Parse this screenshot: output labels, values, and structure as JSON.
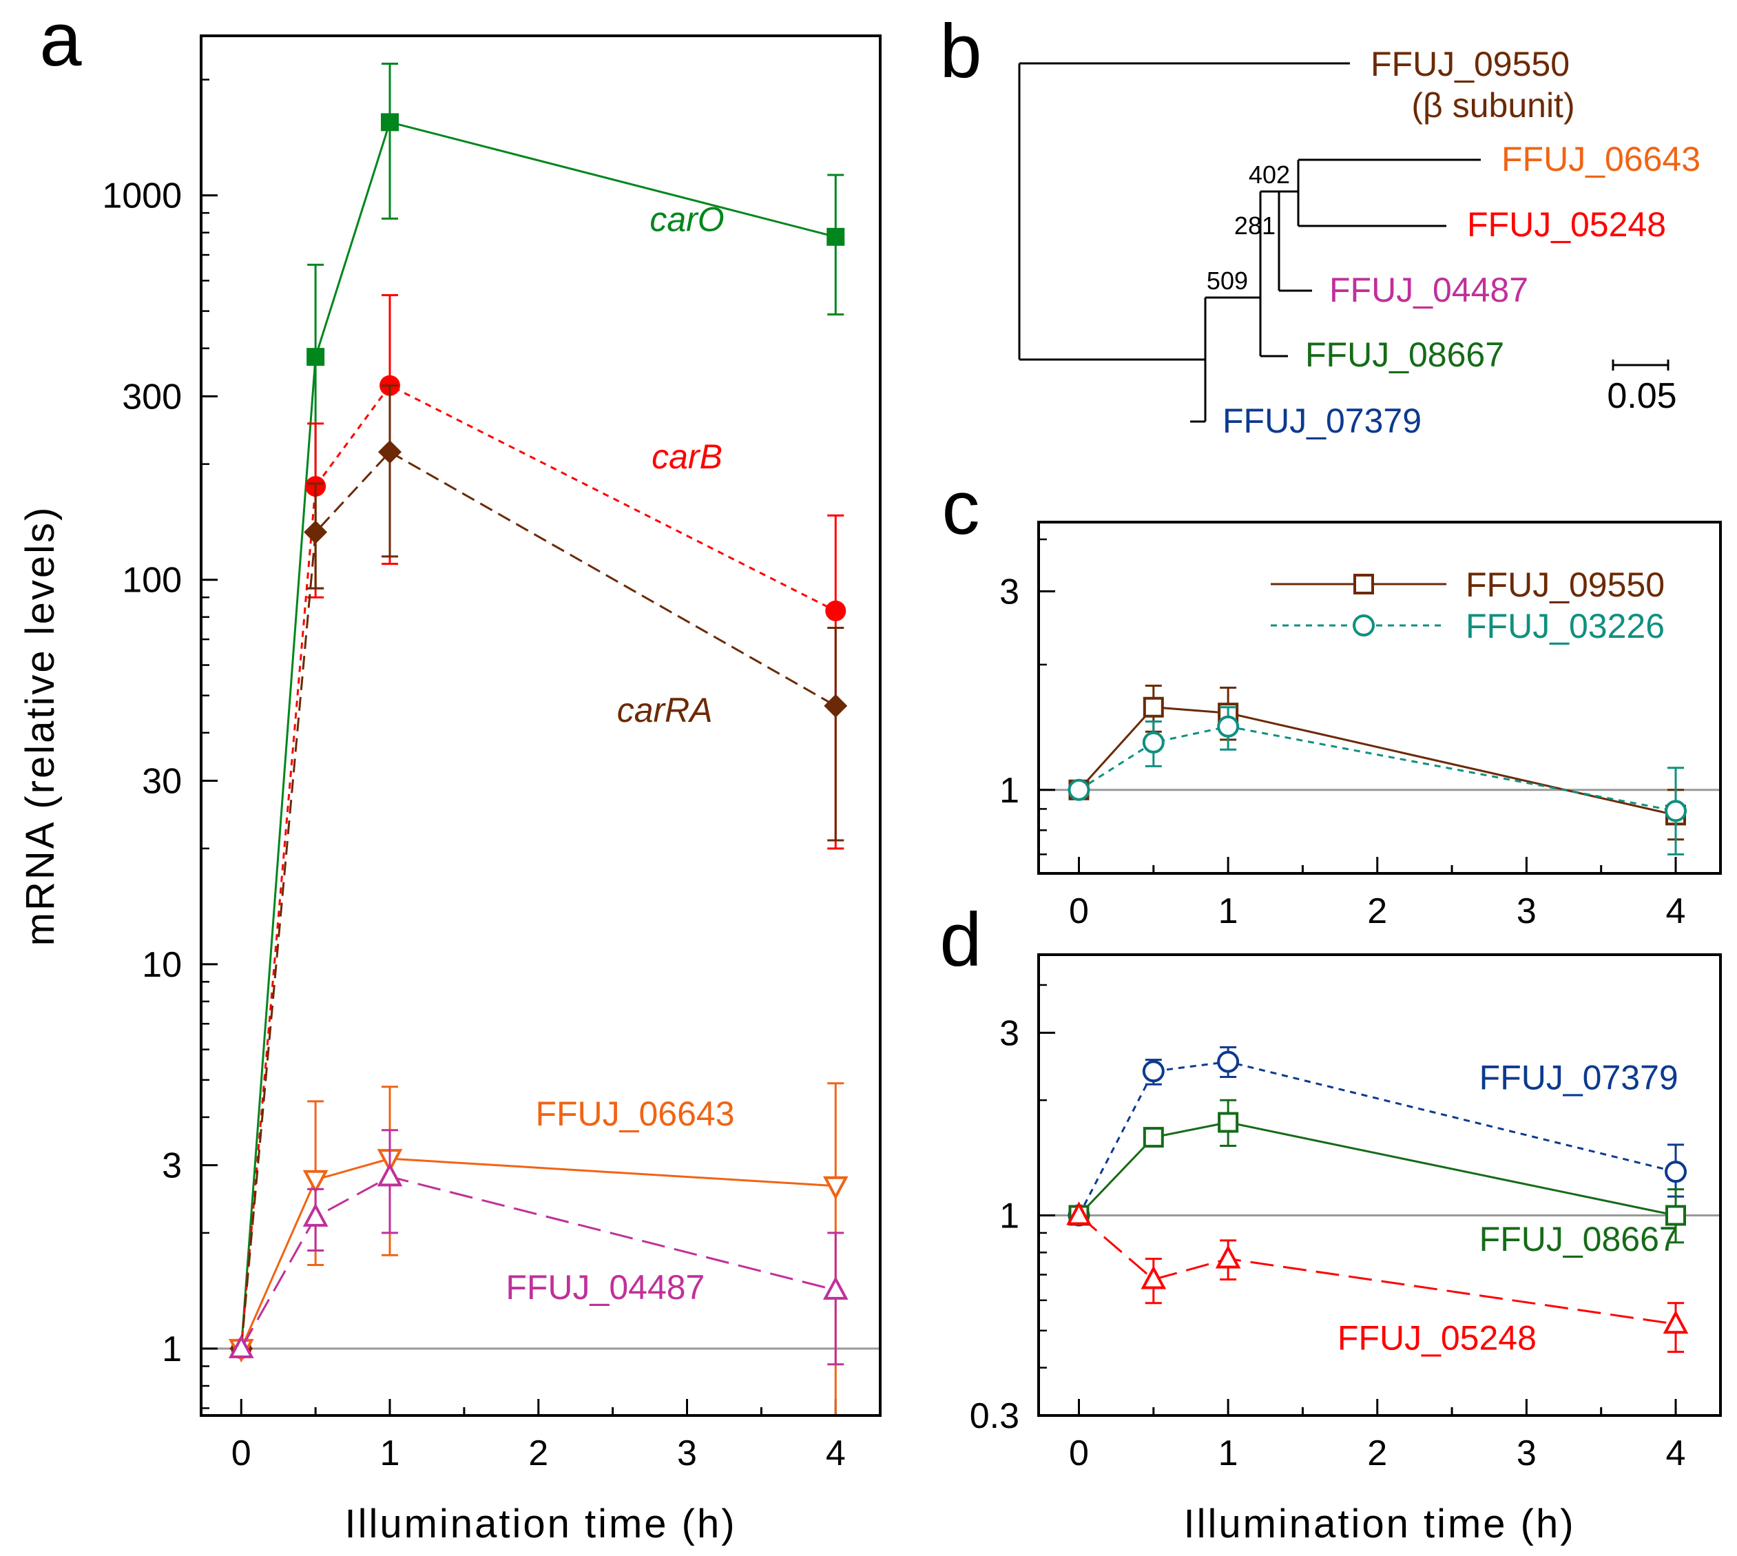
{
  "figure": {
    "xlabel": "Illumination time (h)",
    "baseline_color": "#999999"
  },
  "chart_data": [
    {
      "panel": "a",
      "type": "line",
      "yscale": "log",
      "xlabel": "Illumination time (h)",
      "ylabel": "mRNA (relative levels)",
      "xlim": [
        -0.27,
        4.3
      ],
      "ylim": [
        0.67,
        2600
      ],
      "xticks": [
        0,
        1,
        2,
        3,
        4
      ],
      "xtick_labels": [
        "0",
        "1",
        "2",
        "3",
        "4"
      ],
      "yticks": [
        1,
        3,
        10,
        30,
        100,
        300,
        1000
      ],
      "ytick_labels": [
        "1",
        "3",
        "10",
        "30",
        "100",
        "300",
        "1000"
      ],
      "baseline": 1,
      "series": [
        {
          "name": "carO",
          "italic": true,
          "color": "#00861d",
          "marker": "square-filled",
          "dash": "solid",
          "x": [
            0,
            0.5,
            1,
            4
          ],
          "y": [
            1,
            380,
            1550,
            780
          ],
          "err_low": [
            1,
            95,
            870,
            490
          ],
          "err_high": [
            1,
            660,
            2200,
            1130
          ],
          "label_at": [
            3.0,
            870
          ]
        },
        {
          "name": "carB",
          "italic": true,
          "color": "#ff0000",
          "marker": "circle-filled",
          "dash": "short",
          "x": [
            0,
            0.5,
            1,
            4
          ],
          "y": [
            1,
            175,
            320,
            83
          ],
          "err_low": [
            1,
            90,
            110,
            20
          ],
          "err_high": [
            1,
            255,
            550,
            147
          ],
          "label_at": [
            3.0,
            210
          ]
        },
        {
          "name": "carRA",
          "italic": true,
          "color": "#6b2a05",
          "marker": "diamond-filled",
          "dash": "medium",
          "x": [
            0,
            0.5,
            1,
            4
          ],
          "y": [
            1,
            133,
            215,
            47
          ],
          "err_low": [
            1,
            95,
            115,
            21
          ],
          "err_high": [
            1,
            178,
            320,
            75
          ],
          "label_at": [
            2.85,
            46
          ]
        },
        {
          "name": "FFUJ_06643",
          "italic": false,
          "color": "#f06414",
          "marker": "triangle-down-open",
          "dash": "solid",
          "x": [
            0,
            0.5,
            1,
            4
          ],
          "y": [
            1,
            2.75,
            3.12,
            2.65
          ],
          "err_low": [
            1,
            1.65,
            1.75,
            0.67
          ],
          "err_high": [
            1,
            4.4,
            4.8,
            4.9
          ],
          "label_at": [
            2.65,
            4.1
          ]
        },
        {
          "name": "FFUJ_04487",
          "italic": false,
          "color": "#c0309a",
          "marker": "triangle-up-open",
          "dash": "long",
          "x": [
            0,
            0.5,
            1,
            4
          ],
          "y": [
            1,
            2.2,
            2.8,
            1.42
          ],
          "err_low": [
            1,
            1.8,
            2.0,
            0.91
          ],
          "err_high": [
            1,
            2.6,
            3.7,
            2.0
          ],
          "label_at": [
            2.45,
            1.45
          ]
        }
      ]
    },
    {
      "panel": "b",
      "type": "tree",
      "scale_bar_label": "0.05",
      "bootstrap": [
        "402",
        "281",
        "509"
      ],
      "leaves": [
        {
          "label": "FFUJ_09550",
          "sublabel": "(β subunit)",
          "color": "#6b2a05"
        },
        {
          "label": "FFUJ_06643",
          "color": "#f06414"
        },
        {
          "label": "FFUJ_05248",
          "color": "#ff0000"
        },
        {
          "label": "FFUJ_04487",
          "color": "#c0309a"
        },
        {
          "label": "FFUJ_08667",
          "color": "#156b18"
        },
        {
          "label": "FFUJ_07379",
          "color": "#0c3a8f"
        }
      ]
    },
    {
      "panel": "c",
      "type": "line",
      "yscale": "log",
      "xlim": [
        -0.27,
        4.3
      ],
      "ylim": [
        0.63,
        4.4
      ],
      "xticks": [
        0,
        1,
        2,
        3,
        4
      ],
      "xtick_labels": [
        "0",
        "1",
        "2",
        "3",
        "4"
      ],
      "yticks": [
        1,
        3
      ],
      "ytick_labels": [
        "1",
        "3"
      ],
      "baseline": 1,
      "legend": "top-right",
      "series": [
        {
          "name": "FFUJ_09550",
          "color": "#6b2a05",
          "marker": "square-open",
          "dash": "solid",
          "x": [
            0,
            0.5,
            1,
            4
          ],
          "y": [
            1,
            1.58,
            1.53,
            0.87
          ],
          "err_low": [
            1,
            1.38,
            1.32,
            0.76
          ],
          "err_high": [
            1,
            1.78,
            1.76,
            1.0
          ]
        },
        {
          "name": "FFUJ_03226",
          "color": "#0f9080",
          "marker": "circle-open",
          "dash": "short",
          "x": [
            0,
            0.5,
            1,
            4
          ],
          "y": [
            1,
            1.3,
            1.42,
            0.89
          ],
          "err_low": [
            1,
            1.14,
            1.25,
            0.7
          ],
          "err_high": [
            1,
            1.46,
            1.58,
            1.13
          ]
        }
      ]
    },
    {
      "panel": "d",
      "type": "line",
      "yscale": "log",
      "xlabel": "Illumination time (h)",
      "xlim": [
        -0.27,
        4.3
      ],
      "ylim": [
        0.3,
        4.8
      ],
      "xticks": [
        0,
        1,
        2,
        3,
        4
      ],
      "xtick_labels": [
        "0",
        "1",
        "2",
        "3",
        "4"
      ],
      "yticks": [
        0.3,
        1,
        3
      ],
      "ytick_labels": [
        "0.3",
        "1",
        "3"
      ],
      "baseline": 1,
      "series": [
        {
          "name": "FFUJ_07379",
          "color": "#0c3a8f",
          "marker": "circle-open",
          "dash": "short",
          "x": [
            0,
            0.5,
            1,
            4
          ],
          "y": [
            1,
            2.38,
            2.52,
            1.3
          ],
          "err_low": [
            1,
            2.2,
            2.3,
            1.12
          ],
          "err_high": [
            1,
            2.55,
            2.75,
            1.53
          ],
          "label_at": [
            3.35,
            2.3
          ]
        },
        {
          "name": "FFUJ_08667",
          "color": "#156b18",
          "marker": "square-open",
          "dash": "solid",
          "x": [
            0,
            0.5,
            1,
            4
          ],
          "y": [
            1,
            1.6,
            1.75,
            1.0
          ],
          "err_low": [
            1,
            1.6,
            1.52,
            0.85
          ],
          "err_high": [
            1,
            1.6,
            2.0,
            1.17
          ],
          "label_at": [
            3.35,
            0.87
          ]
        },
        {
          "name": "FFUJ_05248",
          "color": "#ff0000",
          "marker": "triangle-up-open",
          "dash": "long",
          "x": [
            0,
            0.5,
            1,
            4
          ],
          "y": [
            1,
            0.68,
            0.77,
            0.52
          ],
          "err_low": [
            1,
            0.59,
            0.68,
            0.44
          ],
          "err_high": [
            1,
            0.77,
            0.86,
            0.59
          ],
          "label_at": [
            2.4,
            0.48
          ]
        }
      ]
    }
  ]
}
